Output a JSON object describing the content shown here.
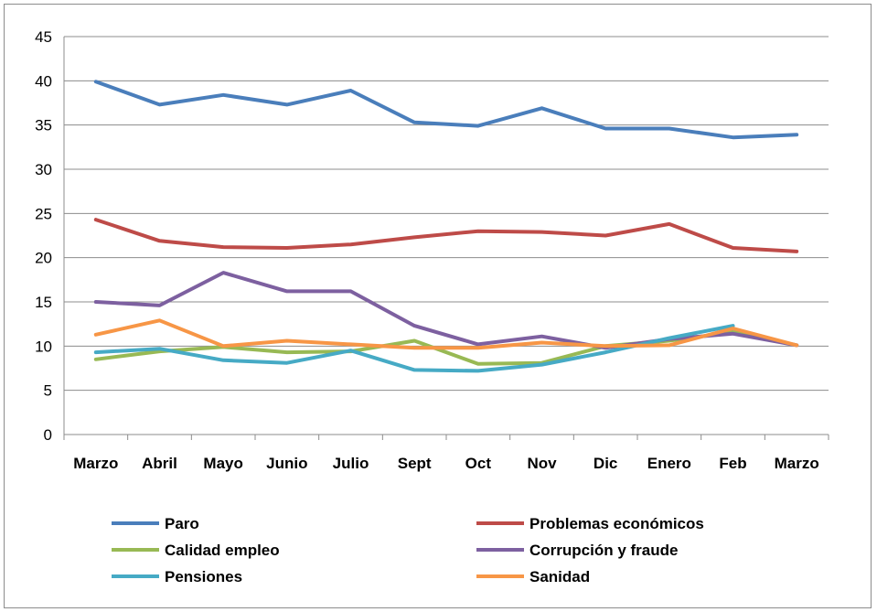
{
  "chart_data": {
    "type": "line",
    "title": "",
    "xlabel": "",
    "ylabel": "",
    "ylim": [
      0,
      45
    ],
    "yticks": [
      0,
      5,
      10,
      15,
      20,
      25,
      30,
      35,
      40,
      45
    ],
    "categories": [
      "Marzo",
      "Abril",
      "Mayo",
      "Junio",
      "Julio",
      "Sept",
      "Oct",
      "Nov",
      "Dic",
      "Enero",
      "Feb",
      "Marzo"
    ],
    "grid": true,
    "legend_position": "bottom",
    "series": [
      {
        "name": "Paro",
        "color": "#4a7ebb",
        "values": [
          39.9,
          37.3,
          38.4,
          37.3,
          38.9,
          35.3,
          34.9,
          36.9,
          34.6,
          34.6,
          33.6,
          33.9
        ]
      },
      {
        "name": "Problemas económicos",
        "color": "#be4b48",
        "values": [
          24.3,
          21.9,
          21.2,
          21.1,
          21.5,
          22.3,
          23.0,
          22.9,
          22.5,
          23.8,
          21.1,
          20.7
        ]
      },
      {
        "name": "Calidad empleo",
        "color": "#98b954",
        "values": [
          8.5,
          9.4,
          9.9,
          9.3,
          9.4,
          10.6,
          8.0,
          8.1,
          10.0,
          10.6,
          11.6,
          10.1
        ]
      },
      {
        "name": "Corrupción y fraude",
        "color": "#7d60a0",
        "values": [
          15.0,
          14.6,
          18.3,
          16.2,
          16.2,
          12.3,
          10.2,
          11.1,
          9.8,
          10.8,
          11.4,
          10.1
        ]
      },
      {
        "name": "Pensiones",
        "color": "#46aac5",
        "values": [
          9.3,
          9.7,
          8.4,
          8.1,
          9.5,
          7.3,
          7.2,
          7.9,
          9.3,
          10.9,
          12.3,
          null
        ]
      },
      {
        "name": "Sanidad",
        "color": "#f79646",
        "values": [
          11.3,
          12.9,
          10.0,
          10.6,
          10.2,
          9.8,
          9.8,
          10.4,
          10.0,
          10.1,
          12.0,
          10.1
        ]
      }
    ]
  }
}
